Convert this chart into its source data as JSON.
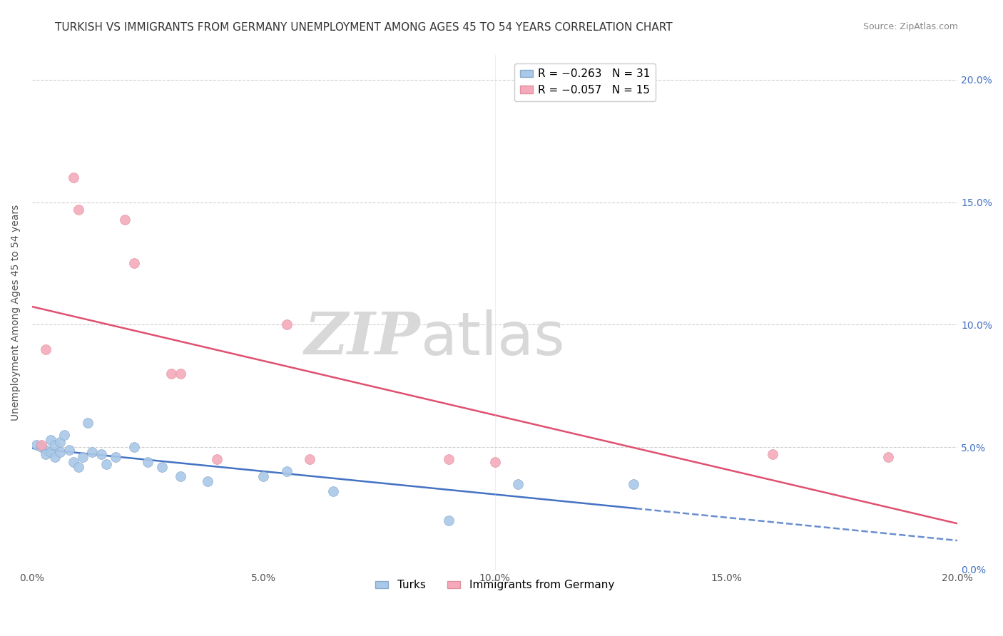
{
  "title": "TURKISH VS IMMIGRANTS FROM GERMANY UNEMPLOYMENT AMONG AGES 45 TO 54 YEARS CORRELATION CHART",
  "source": "Source: ZipAtlas.com",
  "ylabel": "Unemployment Among Ages 45 to 54 years",
  "xmin": 0.0,
  "xmax": 0.2,
  "ymin": 0.0,
  "ymax": 0.21,
  "ytick_vals": [
    0.0,
    0.05,
    0.1,
    0.15,
    0.2
  ],
  "ytick_labels": [
    "0.0%",
    "5.0%",
    "10.0%",
    "15.0%",
    "20.0%"
  ],
  "xtick_vals": [
    0.0,
    0.05,
    0.1,
    0.15,
    0.2
  ],
  "xtick_labels": [
    "0.0%",
    "5.0%",
    "10.0%",
    "15.0%",
    "20.0%"
  ],
  "turks_x": [
    0.001,
    0.002,
    0.003,
    0.003,
    0.004,
    0.004,
    0.005,
    0.005,
    0.006,
    0.006,
    0.007,
    0.008,
    0.009,
    0.01,
    0.011,
    0.012,
    0.013,
    0.015,
    0.016,
    0.018,
    0.022,
    0.025,
    0.028,
    0.032,
    0.038,
    0.05,
    0.055,
    0.065,
    0.09,
    0.105,
    0.13
  ],
  "turks_y": [
    0.051,
    0.05,
    0.049,
    0.047,
    0.053,
    0.048,
    0.051,
    0.046,
    0.048,
    0.052,
    0.055,
    0.049,
    0.044,
    0.042,
    0.046,
    0.06,
    0.048,
    0.047,
    0.043,
    0.046,
    0.05,
    0.044,
    0.042,
    0.038,
    0.036,
    0.038,
    0.04,
    0.032,
    0.02,
    0.035,
    0.035
  ],
  "germany_x": [
    0.002,
    0.003,
    0.009,
    0.01,
    0.02,
    0.022,
    0.03,
    0.032,
    0.04,
    0.055,
    0.06,
    0.09,
    0.1,
    0.16,
    0.185
  ],
  "germany_y": [
    0.051,
    0.09,
    0.16,
    0.147,
    0.143,
    0.125,
    0.08,
    0.08,
    0.045,
    0.1,
    0.045,
    0.045,
    0.044,
    0.047,
    0.046
  ],
  "turks_line_color": "#4472c4",
  "germany_line_color": "#e05070",
  "turks_dot_color": "#aac8e8",
  "germany_dot_color": "#f4aabb",
  "background_color": "#ffffff",
  "grid_color": "#cccccc",
  "watermark_zip": "ZIP",
  "watermark_atlas": "atlas",
  "title_fontsize": 11,
  "axis_label_fontsize": 10,
  "tick_fontsize": 10,
  "right_tick_color": "#4472c4"
}
